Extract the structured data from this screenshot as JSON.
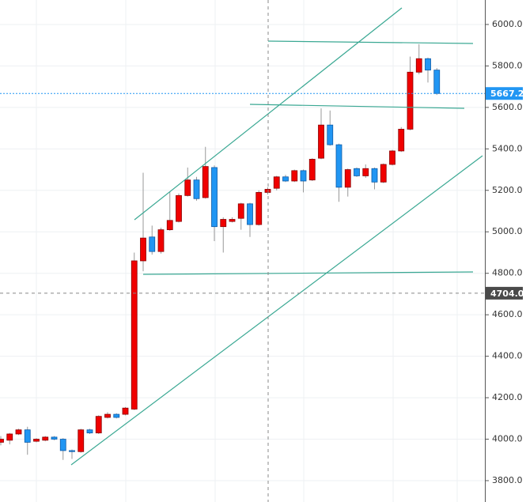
{
  "chart_data": {
    "type": "candlestick",
    "open": [
      3985,
      3995,
      4025,
      4045,
      3990,
      3995,
      4010,
      4000,
      3945,
      3940,
      4045,
      4030,
      4105,
      4120,
      4120,
      4145,
      4860,
      4975,
      4905,
      5010,
      5050,
      5175,
      5250,
      5165,
      5310,
      5025,
      5050,
      5065,
      5135,
      5035,
      5190,
      5210,
      5265,
      5245,
      5295,
      5250,
      5355,
      5515,
      5420,
      5215,
      5305,
      5270,
      5305,
      5240,
      5325,
      5390,
      5495,
      5770,
      5835,
      5780
    ],
    "high": [
      4015,
      4030,
      4050,
      4060,
      4005,
      4015,
      4015,
      4005,
      3950,
      4050,
      4050,
      4115,
      4130,
      4125,
      4155,
      4900,
      5285,
      5030,
      5020,
      5195,
      5185,
      5310,
      5265,
      5410,
      5320,
      5070,
      5070,
      5140,
      5140,
      5200,
      5215,
      5270,
      5275,
      5300,
      5300,
      5355,
      5595,
      5585,
      5425,
      5305,
      5310,
      5325,
      5310,
      5330,
      5395,
      5505,
      5845,
      5905,
      5840,
      5790
    ],
    "low": [
      3970,
      3975,
      4020,
      3925,
      3985,
      3990,
      3995,
      3900,
      3905,
      3935,
      4025,
      4025,
      4100,
      4100,
      4115,
      4140,
      4810,
      4890,
      4895,
      5005,
      5045,
      5170,
      5150,
      5160,
      4955,
      4900,
      5045,
      5010,
      4975,
      5030,
      5180,
      5200,
      5240,
      5240,
      5190,
      5245,
      5350,
      5415,
      5145,
      5170,
      5265,
      5260,
      5205,
      5235,
      5320,
      5385,
      5490,
      5760,
      5720,
      5660
    ],
    "close": [
      4000,
      4025,
      4045,
      3985,
      4000,
      4010,
      4000,
      3945,
      3940,
      4045,
      4030,
      4110,
      4120,
      4105,
      4150,
      4860,
      4970,
      4905,
      5010,
      5055,
      5175,
      5250,
      5160,
      5315,
      5025,
      5060,
      5060,
      5135,
      5035,
      5190,
      5205,
      5265,
      5245,
      5295,
      5245,
      5350,
      5515,
      5420,
      5215,
      5300,
      5270,
      5305,
      5240,
      5325,
      5390,
      5495,
      5770,
      5835,
      5780,
      5667.2
    ],
    "up_color": "#f00000",
    "down_color": "#2196f3",
    "ylim": [
      3697,
      6118
    ],
    "yticks": [
      {
        "value": 3800,
        "label": "3800.0"
      },
      {
        "value": 4000,
        "label": "4000.0"
      },
      {
        "value": 4200,
        "label": "4200.0"
      },
      {
        "value": 4400,
        "label": "4400.0"
      },
      {
        "value": 4600,
        "label": "4600.0"
      },
      {
        "value": 4800,
        "label": "4800.0"
      },
      {
        "value": 5000,
        "label": "5000.0"
      },
      {
        "value": 5200,
        "label": "5200.0"
      },
      {
        "value": 5400,
        "label": "5400.0"
      },
      {
        "value": 5600,
        "label": "5600.0"
      },
      {
        "value": 5800,
        "label": "5800.0"
      },
      {
        "value": 6000,
        "label": "6000.0"
      }
    ],
    "last_price": 5667.2,
    "crosshair_price": {
      "value": 4704,
      "label": "4704.0"
    },
    "grid": true
  }
}
